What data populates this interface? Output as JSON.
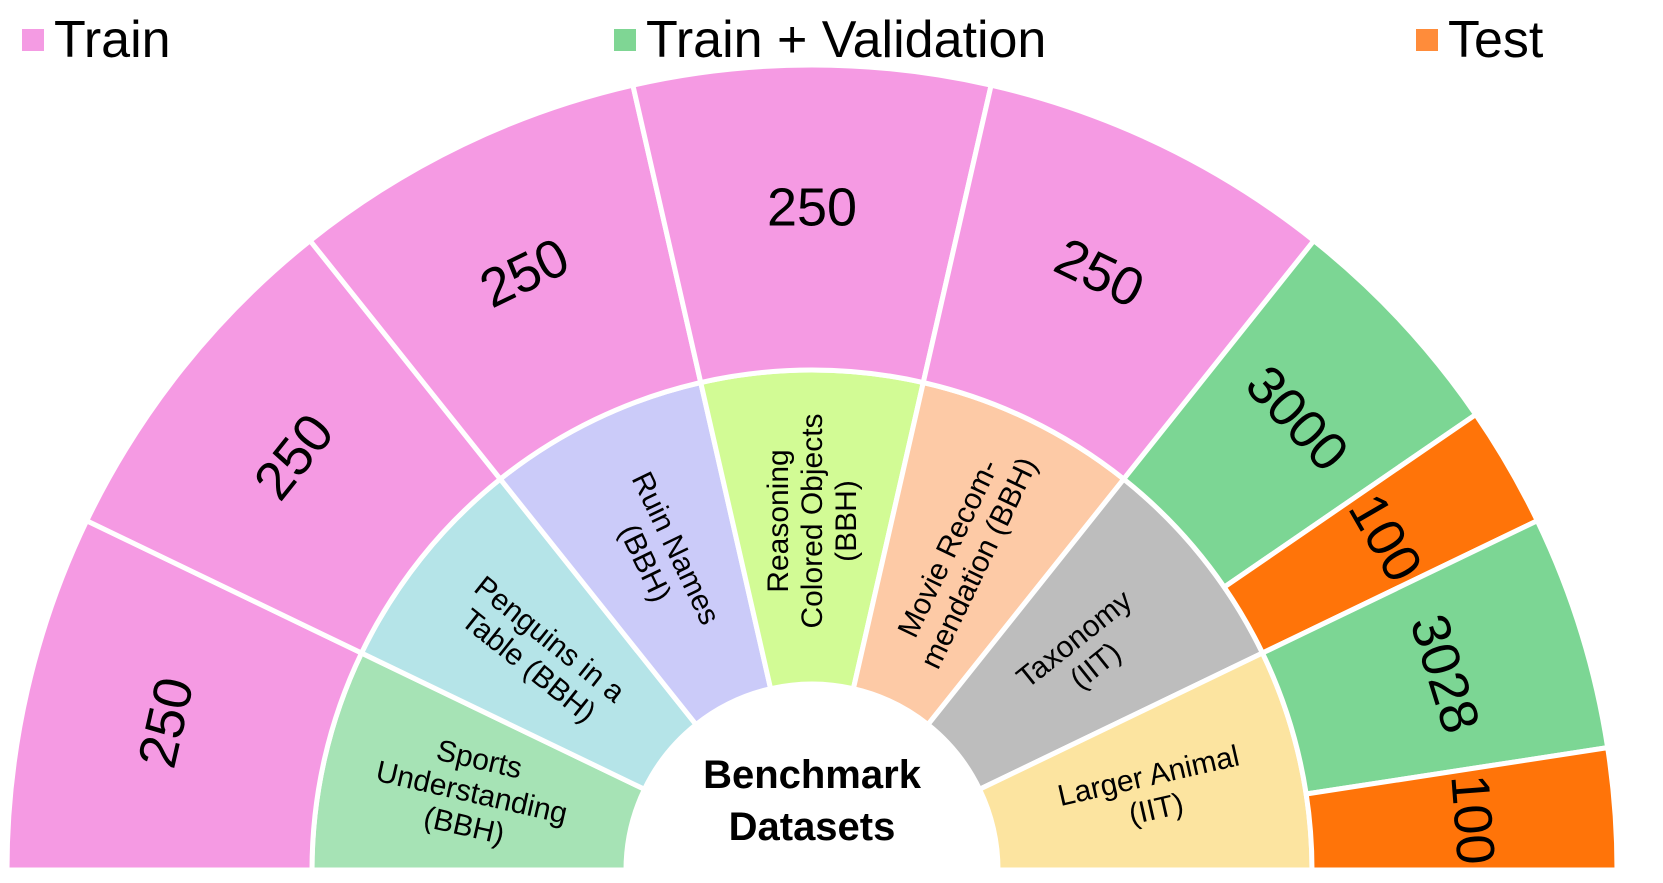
{
  "legend": [
    {
      "label": "Train",
      "color": "#f49be3"
    },
    {
      "label": "Train + Validation",
      "color": "#7fd694"
    },
    {
      "label": "Test",
      "color": "#ff8c3a"
    }
  ],
  "center_label": [
    "Benchmark",
    "Datasets"
  ],
  "chart_data": {
    "type": "sunburst",
    "title": "",
    "center": "Benchmark Datasets",
    "datasets": [
      {
        "label": [
          "Sports",
          "Understanding",
          "(BBH)"
        ],
        "color": "#a6e3b5",
        "splits": [
          {
            "split": "Train",
            "value": 250,
            "color": "#f59ae3"
          }
        ]
      },
      {
        "label": [
          "Penguins in a",
          "Table (BBH)"
        ],
        "color": "#b5e4e8",
        "splits": [
          {
            "split": "Train",
            "value": 250,
            "color": "#f59ae3"
          }
        ]
      },
      {
        "label": [
          "Ruin Names",
          "(BBH)"
        ],
        "color": "#cbcbf9",
        "splits": [
          {
            "split": "Train",
            "value": 250,
            "color": "#f59ae3"
          }
        ]
      },
      {
        "label": [
          "Reasoning",
          "Colored Objects",
          "(BBH)"
        ],
        "color": "#d2fb95",
        "splits": [
          {
            "split": "Train",
            "value": 250,
            "color": "#f59ae3"
          }
        ]
      },
      {
        "label": [
          "Movie Recom-",
          "mendation (BBH)"
        ],
        "color": "#fdcaa6",
        "splits": [
          {
            "split": "Train",
            "value": 250,
            "color": "#f59ae3"
          }
        ]
      },
      {
        "label": [
          "Taxonomy",
          "(IIT)"
        ],
        "color": "#bdbdbd",
        "splits": [
          {
            "split": "Train + Validation",
            "value": 3000,
            "color": "#7cd694"
          },
          {
            "split": "Test",
            "value": 100,
            "color": "#ff7409"
          }
        ]
      },
      {
        "label": [
          "Larger Animal",
          "(IIT)"
        ],
        "color": "#fce4a0",
        "splits": [
          {
            "split": "Train + Validation",
            "value": 3028,
            "color": "#7cd694"
          },
          {
            "split": "Test",
            "value": 100,
            "color": "#ff7409"
          }
        ]
      }
    ]
  }
}
